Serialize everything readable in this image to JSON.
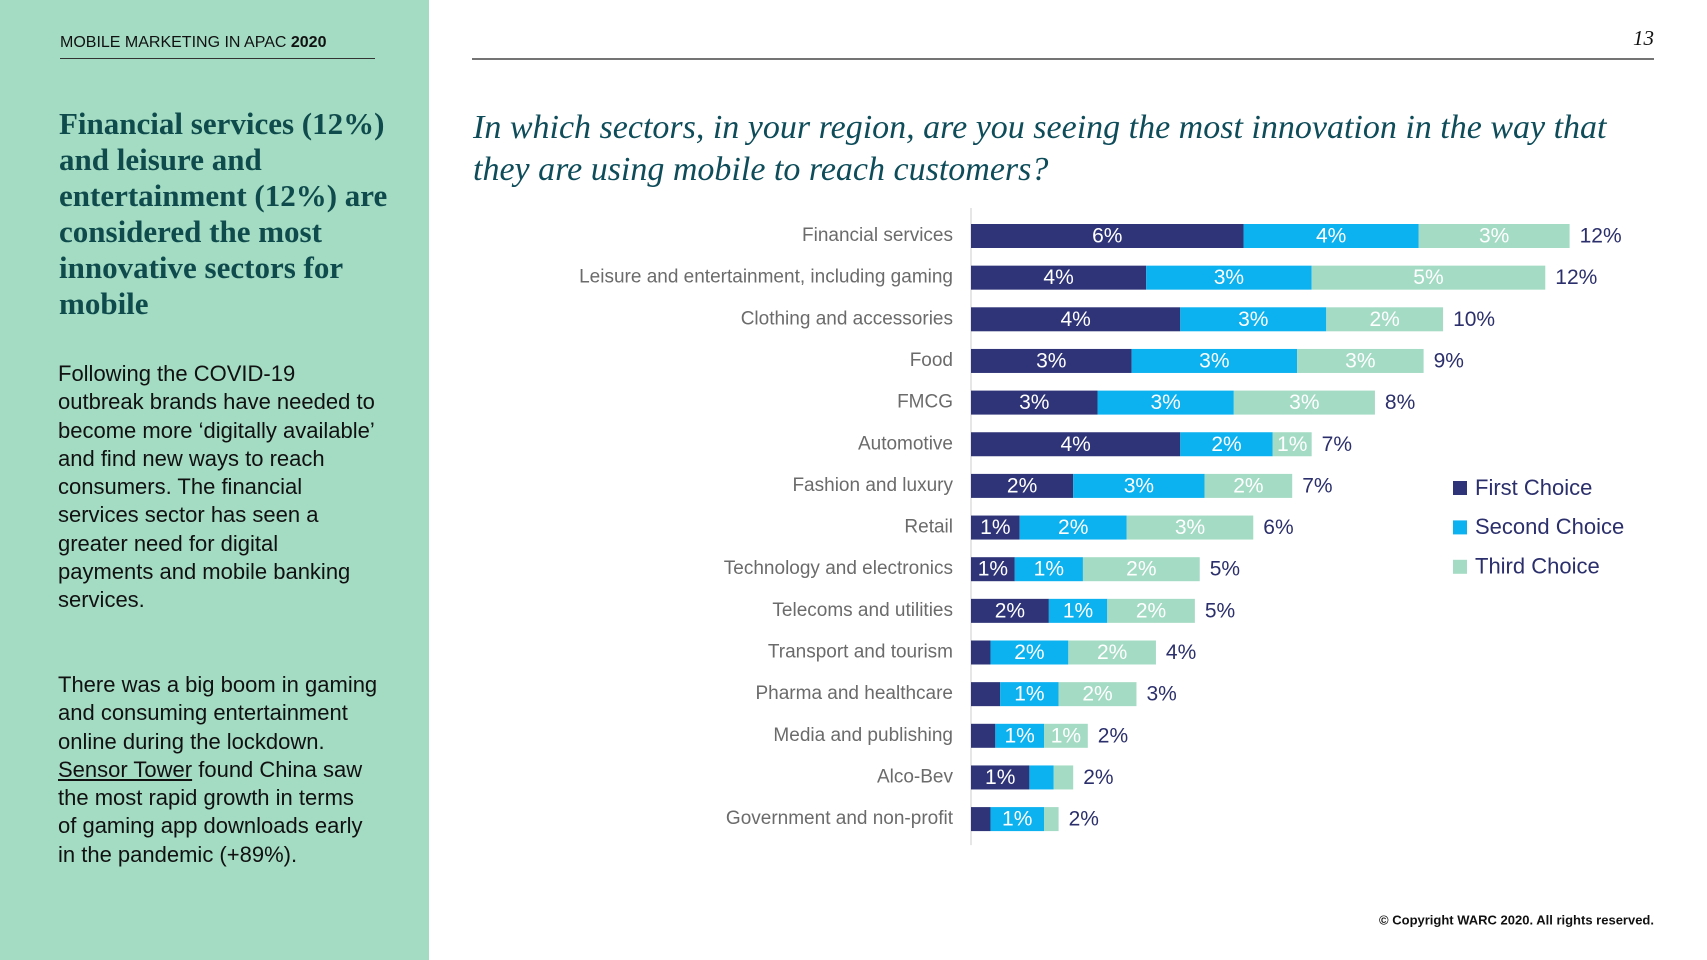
{
  "header": {
    "title": "MOBILE MARKETING IN APAC",
    "year": "2020",
    "page": "13"
  },
  "sidebar": {
    "heading": "Financial services (12%) and leisure and entertainment (12%) are considered the most innovative sectors for mobile",
    "paragraph_1": "Following the COVID-19 outbreak brands have needed to become more ‘digitally available’ and find new ways to reach consumers. The financial services sector has seen a greater need for digital payments and mobile banking services.",
    "paragraph_2": {
      "before": "There was a big boom in gaming and consuming entertainment online during the lockdown.",
      "link": "Sensor Tower",
      "after": "found China saw the most rapid growth in terms of gaming app downloads early in the pandemic (+89%)."
    }
  },
  "chart_data": {
    "type": "stacked-bar-horizontal",
    "title": "In which sectors, in your region, are you seeing the most innovation in the way that they are using mobile to reach customers?",
    "categories": [
      "Financial services",
      "Leisure and entertainment, including gaming",
      "Clothing and accessories",
      "Food",
      "FMCG",
      "Automotive",
      "Fashion and luxury",
      "Retail",
      "Technology and electronics",
      "Telecoms and utilities",
      "Transport and tourism",
      "Pharma and healthcare",
      "Media and publishing",
      "Alco-Bev",
      "Government and non-profit"
    ],
    "series": [
      {
        "name": "First Choice",
        "color": "#2e3477",
        "values": [
          5.6,
          3.6,
          4.3,
          3.3,
          2.6,
          4.3,
          2.1,
          1.0,
          0.9,
          1.6,
          0.4,
          0.6,
          0.5,
          1.2,
          0.4
        ],
        "value_labels": [
          "6%",
          "4%",
          "4%",
          "3%",
          "3%",
          "4%",
          "2%",
          "1%",
          "1%",
          "2%",
          null,
          null,
          null,
          "1%",
          null
        ]
      },
      {
        "name": "Second Choice",
        "color": "#0cb1ef",
        "values": [
          3.6,
          3.4,
          3.0,
          3.4,
          2.8,
          1.9,
          2.7,
          2.2,
          1.4,
          1.2,
          1.6,
          1.2,
          1.0,
          0.5,
          1.1
        ],
        "value_labels": [
          "4%",
          "3%",
          "3%",
          "3%",
          "3%",
          "2%",
          "3%",
          "2%",
          "1%",
          "1%",
          "2%",
          "1%",
          "1%",
          null,
          "1%"
        ]
      },
      {
        "name": "Third Choice",
        "color": "#a4dbc4",
        "values": [
          3.1,
          4.8,
          2.4,
          2.6,
          2.9,
          0.8,
          1.8,
          2.6,
          2.4,
          1.8,
          1.8,
          1.6,
          0.9,
          0.4,
          0.3
        ],
        "value_labels": [
          "3%",
          "5%",
          "2%",
          "3%",
          "3%",
          "1%",
          "2%",
          "3%",
          "2%",
          "2%",
          "2%",
          "2%",
          "1%",
          null,
          null
        ]
      }
    ],
    "totals": [
      12.3,
      11.8,
      9.7,
      9.3,
      8.3,
      7.0,
      6.6,
      5.8,
      4.7,
      4.6,
      3.8,
      3.4,
      2.4,
      2.1,
      1.8
    ],
    "total_labels": [
      "12%",
      "12%",
      "10%",
      "9%",
      "8%",
      "7%",
      "7%",
      "6%",
      "5%",
      "5%",
      "4%",
      "3%",
      "2%",
      "2%",
      "2%"
    ],
    "xlim": [
      0,
      13.5
    ],
    "legend": "right"
  },
  "footer": {
    "copyright": "© Copyright WARC 2020. All rights reserved."
  }
}
